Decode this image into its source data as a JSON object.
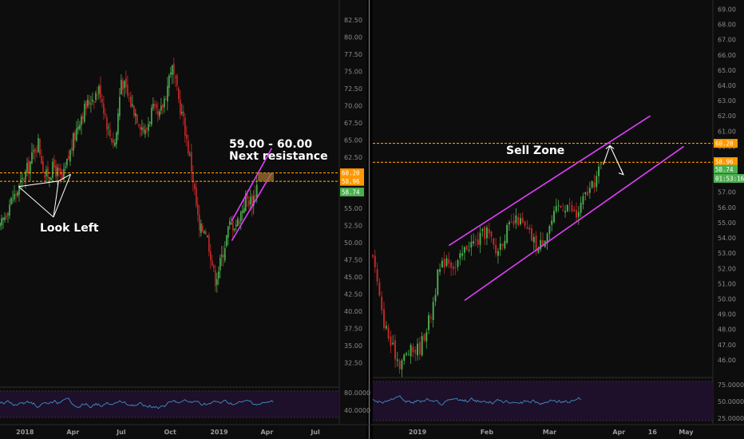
{
  "colors": {
    "background": "#0d0d0d",
    "channel": "#e040fb",
    "resistance": "#ff9800",
    "up_candle": "#4caf50",
    "down_candle": "#c62828",
    "rsi_line": "#3d8fc4",
    "rsi_fill": "#1e0f2a",
    "badge_green": "#4caf50",
    "badge_orange": "#ff9800"
  },
  "chart_data": [
    {
      "type": "candlestick",
      "panel": "left",
      "ylim": [
        29.5,
        84.5
      ],
      "y_ticks": [
        "82.50",
        "80.00",
        "77.50",
        "75.00",
        "72.50",
        "70.00",
        "67.50",
        "65.00",
        "62.50",
        "60.00",
        "57.50",
        "55.00",
        "52.50",
        "50.00",
        "47.50",
        "45.00",
        "42.50",
        "40.00",
        "37.50",
        "35.00",
        "32.50"
      ],
      "x_ticks": [
        "2018",
        "Apr",
        "Jul",
        "Oct",
        "2019",
        "Apr",
        "Jul"
      ],
      "close_path": [
        {
          "date": "2017-11-15",
          "price": 52.0
        },
        {
          "date": "2017-12-01",
          "price": 55.5
        },
        {
          "date": "2017-12-20",
          "price": 57.8
        },
        {
          "date": "2018-01-10",
          "price": 61.5
        },
        {
          "date": "2018-01-25",
          "price": 65.0
        },
        {
          "date": "2018-02-08",
          "price": 59.5
        },
        {
          "date": "2018-02-25",
          "price": 61.0
        },
        {
          "date": "2018-03-12",
          "price": 59.0
        },
        {
          "date": "2018-03-28",
          "price": 63.5
        },
        {
          "date": "2018-04-15",
          "price": 68.5
        },
        {
          "date": "2018-05-05",
          "price": 71.0
        },
        {
          "date": "2018-05-22",
          "price": 72.5
        },
        {
          "date": "2018-06-08",
          "price": 66.0
        },
        {
          "date": "2018-06-20",
          "price": 64.5
        },
        {
          "date": "2018-07-01",
          "price": 74.0
        },
        {
          "date": "2018-07-15",
          "price": 71.0
        },
        {
          "date": "2018-07-28",
          "price": 69.0
        },
        {
          "date": "2018-08-15",
          "price": 66.0
        },
        {
          "date": "2018-08-28",
          "price": 69.5
        },
        {
          "date": "2018-09-10",
          "price": 68.0
        },
        {
          "date": "2018-09-25",
          "price": 72.5
        },
        {
          "date": "2018-10-03",
          "price": 76.0
        },
        {
          "date": "2018-10-15",
          "price": 71.5
        },
        {
          "date": "2018-10-28",
          "price": 67.0
        },
        {
          "date": "2018-11-12",
          "price": 60.0
        },
        {
          "date": "2018-11-25",
          "price": 51.5
        },
        {
          "date": "2018-12-05",
          "price": 52.5
        },
        {
          "date": "2018-12-15",
          "price": 49.0
        },
        {
          "date": "2018-12-24",
          "price": 44.5
        },
        {
          "date": "2019-01-05",
          "price": 47.5
        },
        {
          "date": "2019-01-20",
          "price": 52.5
        },
        {
          "date": "2019-02-05",
          "price": 53.0
        },
        {
          "date": "2019-02-20",
          "price": 56.5
        },
        {
          "date": "2019-03-05",
          "price": 56.0
        },
        {
          "date": "2019-03-14",
          "price": 58.7
        }
      ],
      "resistance_levels": [
        60.2,
        58.96
      ],
      "price_badges": [
        {
          "label": "60.20",
          "price": 60.2,
          "color": "orange"
        },
        {
          "label": "58.96",
          "price": 58.96,
          "color": "orange"
        },
        {
          "label": "58.74",
          "price": 57.4,
          "color": "green"
        }
      ],
      "channel": {
        "lower": [
          {
            "date": "2019-01-25",
            "price": 50.3
          },
          {
            "date": "2019-04-10",
            "price": 60.2
          }
        ],
        "upper": [
          {
            "date": "2019-01-25",
            "price": 53.2
          },
          {
            "date": "2019-04-10",
            "price": 63.8
          }
        ]
      },
      "annotations": {
        "look_left": "Look Left",
        "resistance_line1": "59.00 - 60.00",
        "resistance_line2": "Next resistance"
      },
      "rsi": {
        "ticks": [
          "80.0000",
          "40.0000"
        ]
      }
    },
    {
      "type": "candlestick",
      "panel": "right",
      "ylim": [
        45.0,
        69.6
      ],
      "y_ticks": [
        "69.00",
        "68.00",
        "67.00",
        "66.00",
        "65.00",
        "64.00",
        "63.00",
        "62.00",
        "61.00",
        "60.00",
        "59.00",
        "58.00",
        "57.00",
        "56.00",
        "55.00",
        "54.00",
        "53.00",
        "52.00",
        "51.00",
        "50.00",
        "49.00",
        "48.00",
        "47.00",
        "46.00"
      ],
      "x_ticks": [
        "2019",
        "Feb",
        "Mar",
        "Apr",
        "16",
        "May"
      ],
      "close_path": [
        {
          "date": "2018-12-12",
          "price": 53.0
        },
        {
          "date": "2018-12-16",
          "price": 49.0
        },
        {
          "date": "2018-12-20",
          "price": 47.0
        },
        {
          "date": "2018-12-24",
          "price": 45.8
        },
        {
          "date": "2018-12-28",
          "price": 46.5
        },
        {
          "date": "2019-01-02",
          "price": 46.8
        },
        {
          "date": "2019-01-07",
          "price": 49.0
        },
        {
          "date": "2019-01-10",
          "price": 51.5
        },
        {
          "date": "2019-01-14",
          "price": 52.8
        },
        {
          "date": "2019-01-18",
          "price": 52.0
        },
        {
          "date": "2019-01-23",
          "price": 53.5
        },
        {
          "date": "2019-01-28",
          "price": 53.8
        },
        {
          "date": "2019-02-01",
          "price": 54.5
        },
        {
          "date": "2019-02-05",
          "price": 53.0
        },
        {
          "date": "2019-02-10",
          "price": 54.5
        },
        {
          "date": "2019-02-15",
          "price": 55.2
        },
        {
          "date": "2019-02-20",
          "price": 54.2
        },
        {
          "date": "2019-02-24",
          "price": 53.3
        },
        {
          "date": "2019-02-28",
          "price": 54.5
        },
        {
          "date": "2019-03-05",
          "price": 56.0
        },
        {
          "date": "2019-03-09",
          "price": 56.2
        },
        {
          "date": "2019-03-13",
          "price": 55.4
        },
        {
          "date": "2019-03-17",
          "price": 56.8
        },
        {
          "date": "2019-03-20",
          "price": 57.3
        },
        {
          "date": "2019-03-24",
          "price": 58.7
        }
      ],
      "resistance_levels": [
        60.2,
        58.96
      ],
      "price_badges": [
        {
          "label": "60.20",
          "price": 60.2,
          "color": "orange"
        },
        {
          "label": "58.96",
          "price": 59.0,
          "color": "orange"
        },
        {
          "label": "58.74",
          "price": 58.5,
          "color": "green"
        },
        {
          "label": "01:53:16",
          "price": 57.9,
          "color": "green"
        }
      ],
      "channel": {
        "lower": [
          {
            "date": "2019-01-22",
            "price": 49.9
          },
          {
            "date": "2019-04-30",
            "price": 60.0
          }
        ],
        "upper": [
          {
            "date": "2019-01-15",
            "price": 53.5
          },
          {
            "date": "2019-04-15",
            "price": 62.0
          }
        ]
      },
      "forecast_path": [
        {
          "date": "2019-03-25",
          "price": 58.8
        },
        {
          "date": "2019-03-28",
          "price": 60.05
        },
        {
          "date": "2019-04-03",
          "price": 58.15
        }
      ],
      "annotations": {
        "sell_zone": "Sell Zone"
      },
      "rsi": {
        "ticks": [
          "75.0000",
          "50.0000",
          "25.0000"
        ]
      }
    }
  ]
}
